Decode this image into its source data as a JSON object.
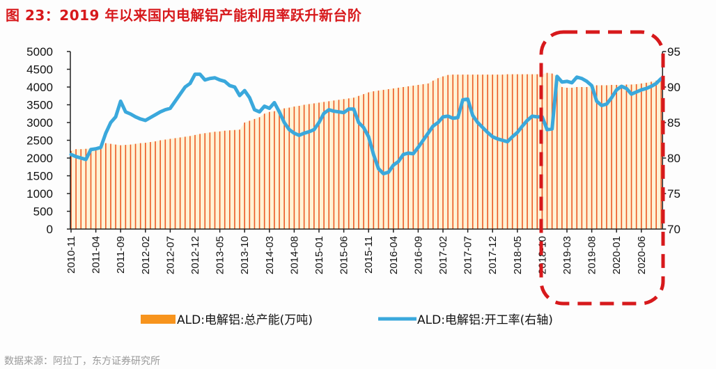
{
  "title": "图 23：2019 年以来国内电解铝产能利用率跃升新台阶",
  "source": "数据来源：阿拉丁，东方证券研究所",
  "chart_data": {
    "type": "bar+line",
    "title": "图 23：2019 年以来国内电解铝产能利用率跃升新台阶",
    "start_month": "2010-11",
    "end_month": "2020-10",
    "x_tick_labels": [
      "2010-11",
      "2011-04",
      "2011-09",
      "2012-02",
      "2012-07",
      "2012-12",
      "2013-05",
      "2013-10",
      "2014-03",
      "2014-08",
      "2015-01",
      "2015-06",
      "2015-11",
      "2016-04",
      "2016-09",
      "2017-02",
      "2017-07",
      "2017-12",
      "2018-05",
      "2018-10",
      "2019-03",
      "2019-08",
      "2020-01",
      "2020-06"
    ],
    "y_left": {
      "ylim": [
        0,
        5000
      ],
      "ticks": [
        "0",
        "500",
        "1000",
        "1500",
        "2000",
        "2500",
        "3000",
        "3500",
        "4000",
        "4500",
        "5000"
      ]
    },
    "y_right": {
      "ylim": [
        70,
        95
      ],
      "ticks": [
        "70",
        "75",
        "80",
        "85",
        "90",
        "95"
      ]
    },
    "series": [
      {
        "name": "ALD:电解铝:总产能(万吨)",
        "type": "bar",
        "axis": "left",
        "color": "#f7941d",
        "values": [
          2200,
          2250,
          2250,
          2260,
          2270,
          2300,
          2350,
          2420,
          2400,
          2380,
          2360,
          2370,
          2380,
          2400,
          2420,
          2430,
          2450,
          2470,
          2500,
          2520,
          2540,
          2560,
          2580,
          2600,
          2620,
          2650,
          2680,
          2700,
          2720,
          2740,
          2750,
          2770,
          2780,
          2790,
          2800,
          3000,
          3050,
          3100,
          3150,
          3250,
          3300,
          3320,
          3350,
          3400,
          3420,
          3450,
          3470,
          3500,
          3520,
          3540,
          3560,
          3580,
          3600,
          3620,
          3640,
          3660,
          3680,
          3700,
          3750,
          3800,
          3850,
          3880,
          3900,
          3920,
          3940,
          3960,
          3980,
          4000,
          4020,
          4040,
          4060,
          4080,
          4100,
          4180,
          4250,
          4300,
          4340,
          4350,
          4350,
          4350,
          4350,
          4350,
          4350,
          4350,
          4350,
          4350,
          4350,
          4350,
          4360,
          4360,
          4360,
          4360,
          4360,
          4360,
          4360,
          4360,
          4400,
          4380,
          4300,
          4000,
          3980,
          3980,
          4000,
          4000,
          4000,
          4020,
          4050,
          4050,
          4050,
          4060,
          4060,
          4060,
          4070,
          4070,
          4080,
          4100,
          4120,
          4150,
          4180,
          4200
        ]
      },
      {
        "name": "ALD:电解铝:开工率(右轴)",
        "type": "line",
        "axis": "right",
        "color": "#3aa8dc",
        "values": [
          80.5,
          80.2,
          80.0,
          79.8,
          81.2,
          81.3,
          81.5,
          83.5,
          85.0,
          85.8,
          88.0,
          86.5,
          86.2,
          85.8,
          85.5,
          85.3,
          85.7,
          86.1,
          86.5,
          86.8,
          87.0,
          88.0,
          89.0,
          90.0,
          90.5,
          91.8,
          91.8,
          91.0,
          91.2,
          91.3,
          91.0,
          90.8,
          90.2,
          90.0,
          88.8,
          89.5,
          88.5,
          86.8,
          86.5,
          87.3,
          87.0,
          87.8,
          86.5,
          85.0,
          84.0,
          83.5,
          83.2,
          83.5,
          83.7,
          84.0,
          85.0,
          86.3,
          86.8,
          86.6,
          86.5,
          86.4,
          86.9,
          86.9,
          85.0,
          84.3,
          83.0,
          80.5,
          78.5,
          77.8,
          78.0,
          79.0,
          79.5,
          80.5,
          80.7,
          80.6,
          81.5,
          82.5,
          83.5,
          84.5,
          85.0,
          85.8,
          85.9,
          85.6,
          85.7,
          88.2,
          88.3,
          86.0,
          85.0,
          84.3,
          83.6,
          83.0,
          82.7,
          82.5,
          82.3,
          83.0,
          83.6,
          84.5,
          85.3,
          85.9,
          85.8,
          85.8,
          84.0,
          84.1,
          91.5,
          90.7,
          90.8,
          90.6,
          91.4,
          91.2,
          90.8,
          90.2,
          88.0,
          87.4,
          87.6,
          88.5,
          89.6,
          90.1,
          89.8,
          89.0,
          89.3,
          89.6,
          89.8,
          90.1,
          90.5,
          91.2
        ]
      }
    ],
    "legend": {
      "position": "bottom"
    },
    "annotation": {
      "type": "dashed-rounded-rect",
      "color": "#d7191c",
      "from": "2018-11",
      "to": "2020-10"
    },
    "grid": false
  }
}
